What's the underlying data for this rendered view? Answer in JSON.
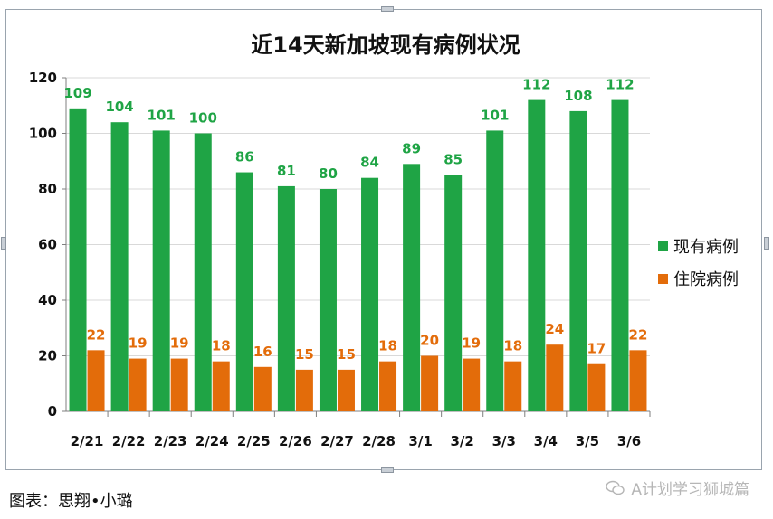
{
  "chart_data": {
    "type": "bar",
    "title": "近14天新加坡现有病例状况",
    "categories": [
      "2/21",
      "2/22",
      "2/23",
      "2/24",
      "2/25",
      "2/26",
      "2/27",
      "2/28",
      "3/1",
      "3/2",
      "3/3",
      "3/4",
      "3/5",
      "3/6"
    ],
    "series": [
      {
        "name": "现有病例",
        "color": "#1fa445",
        "values": [
          109,
          104,
          101,
          100,
          86,
          81,
          80,
          84,
          89,
          85,
          101,
          112,
          108,
          112
        ]
      },
      {
        "name": "住院病例",
        "color": "#e36c0a",
        "values": [
          22,
          19,
          19,
          18,
          16,
          15,
          15,
          18,
          20,
          19,
          18,
          24,
          17,
          22
        ]
      }
    ],
    "ylim": [
      0,
      120
    ],
    "yticks": [
      0,
      20,
      40,
      60,
      80,
      100,
      120
    ],
    "grid": true,
    "legend": "right"
  },
  "caption": "图表：思翔•小璐",
  "watermark": "A计划学习狮城篇"
}
